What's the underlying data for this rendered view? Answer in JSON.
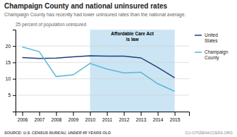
{
  "chart_data": {
    "type": "line",
    "title": "Champaign County and national uninsured rates",
    "subtitle": "Champaign County has recently had lower uninsured rates than the national average.",
    "ylabel": "25 percent of population uninsured",
    "source": "SOURCE: U.S. CENSUS BUREAU, UNDER 65 YEARS OLD",
    "credit": "CU-CITIZENACCESS.ORG",
    "x": [
      2006,
      2007,
      2008,
      2009,
      2010,
      2011,
      2012,
      2013,
      2014,
      2015
    ],
    "series": [
      {
        "name": "United\nStates",
        "color": "#1f3f7a",
        "values": [
          16.5,
          16.2,
          16.3,
          16.7,
          17.0,
          16.9,
          16.9,
          16.4,
          13.5,
          10.3
        ]
      },
      {
        "name": "Champaign\nCounty",
        "color": "#5bb8d4",
        "values": [
          19.7,
          18.3,
          10.7,
          11.2,
          14.7,
          13.0,
          11.8,
          12.0,
          8.5,
          6.2
        ]
      }
    ],
    "xlim": [
      2005.6,
      2015.85
    ],
    "xticks": [
      2006,
      2007,
      2008,
      2009,
      2010,
      2011,
      2012,
      2013,
      2014,
      2015
    ],
    "ylim": [
      0,
      25
    ],
    "yticks": [
      5,
      10,
      15,
      20
    ],
    "grid": true,
    "legend": "right",
    "annotations": [
      {
        "text": "Affordable Care Act\nis law",
        "x_start": 2010,
        "x_end": 2015,
        "color": "#cce5f4"
      }
    ]
  }
}
